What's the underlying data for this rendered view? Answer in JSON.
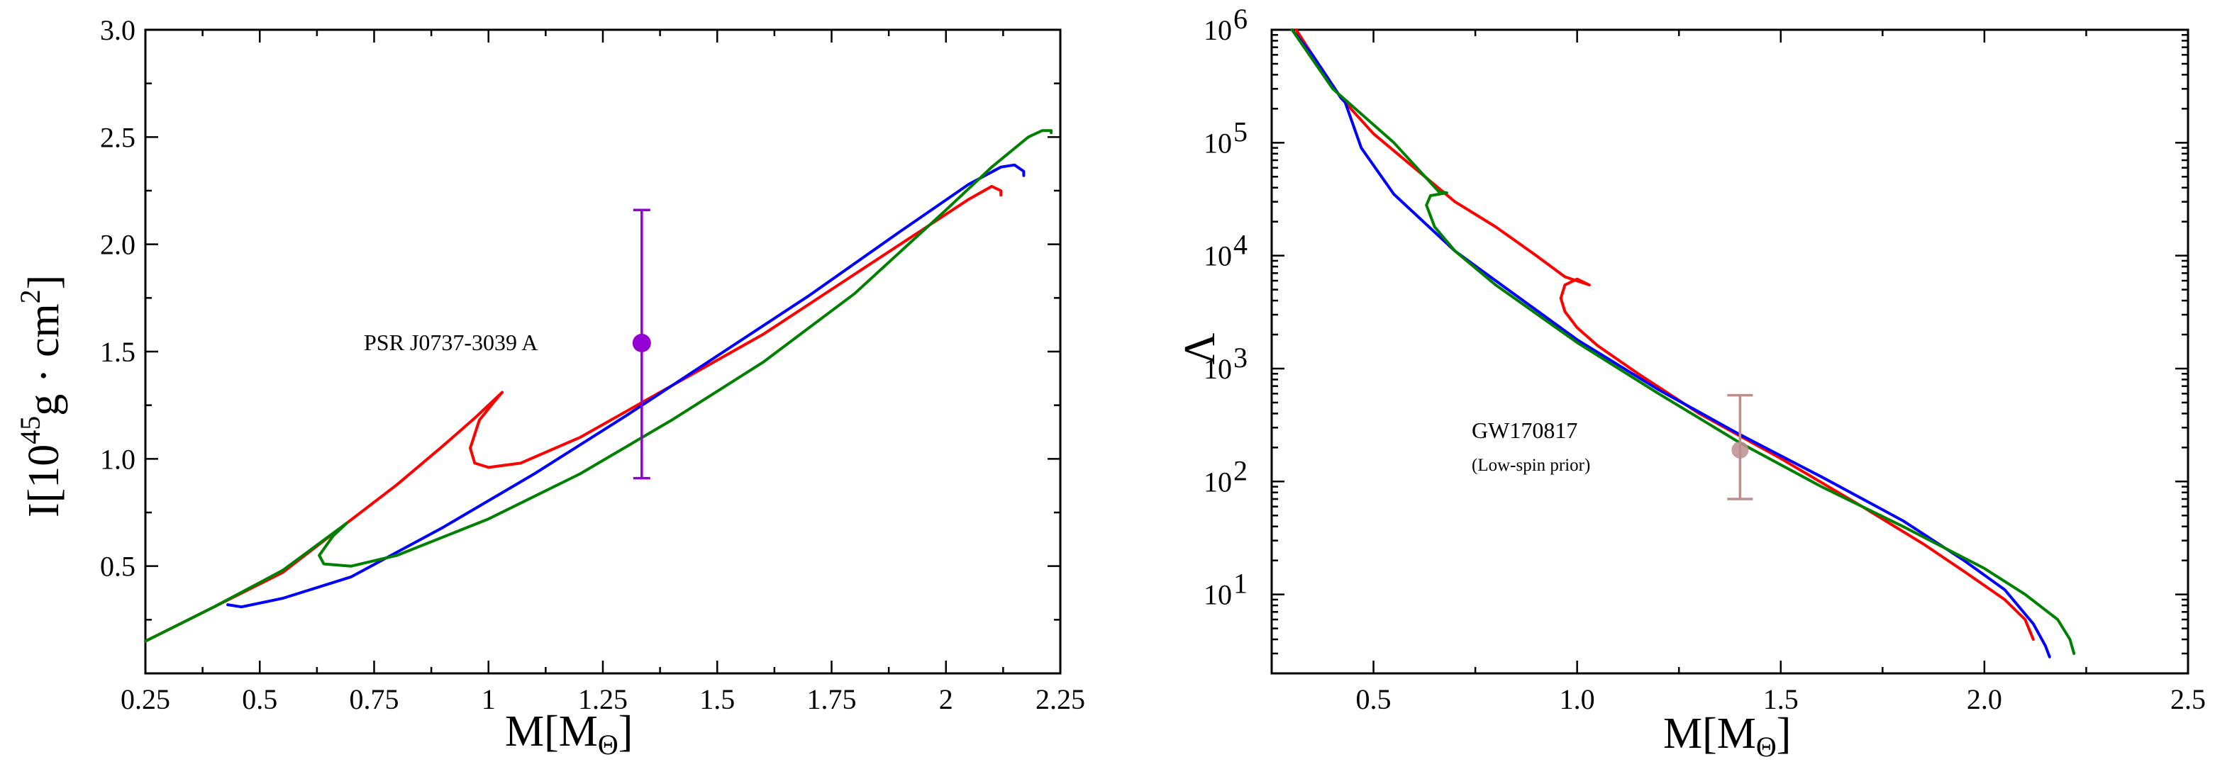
{
  "chart_data": [
    {
      "type": "line",
      "xlim": [
        0.25,
        2.25
      ],
      "ylim": [
        0,
        3.0
      ],
      "x_ticks": [
        "0.25",
        "0.5",
        "0.75",
        "1",
        "1.25",
        "1.5",
        "1.75",
        "2",
        "2.25"
      ],
      "y_ticks": [
        "0.5",
        "1.0",
        "1.5",
        "2.0",
        "2.5",
        "3.0"
      ],
      "xlabel": {
        "main": "M[M",
        "sub": "Θ",
        "end": "]"
      },
      "ylabel": {
        "main": "I[10",
        "sup1": "45",
        "mid": "g · cm",
        "sup2": "2",
        "end": "]"
      },
      "annotation": "PSR J0737-3039 A",
      "colors": {
        "red": "#ff0000",
        "blue": "#0000ff",
        "green": "#008000",
        "marker": "#9400d3"
      },
      "series": [
        {
          "color": "red",
          "points": [
            [
              0.25,
              0.15
            ],
            [
              0.4,
              0.31
            ],
            [
              0.55,
              0.47
            ],
            [
              0.69,
              0.7
            ],
            [
              0.8,
              0.88
            ],
            [
              0.9,
              1.06
            ],
            [
              0.97,
              1.19
            ],
            [
              1.03,
              1.31
            ],
            [
              1.01,
              1.26
            ],
            [
              0.98,
              1.18
            ],
            [
              0.96,
              1.05
            ],
            [
              0.97,
              0.98
            ],
            [
              1.0,
              0.96
            ],
            [
              1.07,
              0.98
            ],
            [
              1.2,
              1.1
            ],
            [
              1.4,
              1.34
            ],
            [
              1.6,
              1.58
            ],
            [
              1.8,
              1.86
            ],
            [
              1.95,
              2.07
            ],
            [
              2.05,
              2.21
            ],
            [
              2.1,
              2.27
            ],
            [
              2.12,
              2.25
            ],
            [
              2.12,
              2.23
            ]
          ]
        },
        {
          "color": "blue",
          "points": [
            [
              0.43,
              0.32
            ],
            [
              0.46,
              0.31
            ],
            [
              0.55,
              0.35
            ],
            [
              0.7,
              0.45
            ],
            [
              0.9,
              0.68
            ],
            [
              1.1,
              0.93
            ],
            [
              1.3,
              1.2
            ],
            [
              1.5,
              1.48
            ],
            [
              1.7,
              1.76
            ],
            [
              1.9,
              2.06
            ],
            [
              2.05,
              2.28
            ],
            [
              2.12,
              2.36
            ],
            [
              2.15,
              2.37
            ],
            [
              2.17,
              2.34
            ],
            [
              2.17,
              2.32
            ]
          ]
        },
        {
          "color": "green",
          "points": [
            [
              0.25,
              0.15
            ],
            [
              0.4,
              0.31
            ],
            [
              0.55,
              0.48
            ],
            [
              0.69,
              0.7
            ],
            [
              0.66,
              0.64
            ],
            [
              0.63,
              0.55
            ],
            [
              0.64,
              0.51
            ],
            [
              0.7,
              0.5
            ],
            [
              0.8,
              0.55
            ],
            [
              1.0,
              0.72
            ],
            [
              1.2,
              0.93
            ],
            [
              1.4,
              1.18
            ],
            [
              1.6,
              1.45
            ],
            [
              1.8,
              1.77
            ],
            [
              2.0,
              2.16
            ],
            [
              2.1,
              2.36
            ],
            [
              2.18,
              2.5
            ],
            [
              2.21,
              2.53
            ],
            [
              2.23,
              2.53
            ],
            [
              2.23,
              2.52
            ]
          ]
        }
      ],
      "error_bar": {
        "x": 1.335,
        "y": 1.54,
        "y_low": 0.91,
        "y_high": 2.16
      }
    },
    {
      "type": "line",
      "xlim": [
        0.25,
        2.5
      ],
      "ylim": [
        2,
        1000000
      ],
      "log_y": true,
      "x_ticks": [
        "0.5",
        "1.0",
        "1.5",
        "2.0",
        "2.5"
      ],
      "y_ticks": [
        {
          "base": "10",
          "exp": "1"
        },
        {
          "base": "10",
          "exp": "2"
        },
        {
          "base": "10",
          "exp": "3"
        },
        {
          "base": "10",
          "exp": "4"
        },
        {
          "base": "10",
          "exp": "5"
        },
        {
          "base": "10",
          "exp": "6"
        }
      ],
      "xlabel": {
        "main": "M[M",
        "sub": "Θ",
        "end": "]"
      },
      "ylabel": "Λ",
      "annotation": "GW170817",
      "annotation_sub": "(Low-spin prior)",
      "colors": {
        "red": "#ff0000",
        "blue": "#0000ff",
        "green": "#008000",
        "marker": "#bc8f8f"
      },
      "series": [
        {
          "color": "red",
          "points": [
            [
              0.31,
              1000000
            ],
            [
              0.35,
              600000
            ],
            [
              0.42,
              250000
            ],
            [
              0.5,
              120000
            ],
            [
              0.6,
              60000
            ],
            [
              0.7,
              30000
            ],
            [
              0.8,
              18000
            ],
            [
              0.9,
              10000
            ],
            [
              0.97,
              6500
            ],
            [
              1.03,
              5500
            ],
            [
              1.0,
              6200
            ],
            [
              0.97,
              5500
            ],
            [
              0.96,
              4200
            ],
            [
              0.97,
              3200
            ],
            [
              1.0,
              2300
            ],
            [
              1.05,
              1600
            ],
            [
              1.15,
              900
            ],
            [
              1.3,
              400
            ],
            [
              1.5,
              160
            ],
            [
              1.7,
              60
            ],
            [
              1.85,
              28
            ],
            [
              1.95,
              16
            ],
            [
              2.05,
              9
            ],
            [
              2.1,
              6
            ],
            [
              2.12,
              4
            ]
          ]
        },
        {
          "color": "blue",
          "points": [
            [
              0.3,
              1000000
            ],
            [
              0.35,
              600000
            ],
            [
              0.42,
              250000
            ],
            [
              0.43,
              230000
            ],
            [
              0.47,
              90000
            ],
            [
              0.55,
              35000
            ],
            [
              0.7,
              11000
            ],
            [
              0.8,
              6000
            ],
            [
              1.0,
              1800
            ],
            [
              1.2,
              650
            ],
            [
              1.4,
              260
            ],
            [
              1.6,
              110
            ],
            [
              1.8,
              45
            ],
            [
              1.95,
              20
            ],
            [
              2.05,
              11
            ],
            [
              2.12,
              5.5
            ],
            [
              2.15,
              3.5
            ],
            [
              2.16,
              2.8
            ]
          ]
        },
        {
          "color": "green",
          "points": [
            [
              0.3,
              1000000
            ],
            [
              0.4,
              300000
            ],
            [
              0.55,
              100000
            ],
            [
              0.66,
              37000
            ],
            [
              0.68,
              36000
            ],
            [
              0.64,
              34000
            ],
            [
              0.63,
              28000
            ],
            [
              0.65,
              18000
            ],
            [
              0.7,
              11000
            ],
            [
              0.8,
              5500
            ],
            [
              1.0,
              1700
            ],
            [
              1.2,
              600
            ],
            [
              1.4,
              220
            ],
            [
              1.6,
              90
            ],
            [
              1.8,
              40
            ],
            [
              2.0,
              17
            ],
            [
              2.1,
              10
            ],
            [
              2.18,
              6
            ],
            [
              2.21,
              4
            ],
            [
              2.22,
              3
            ]
          ]
        }
      ],
      "error_bar": {
        "x": 1.4,
        "y": 190,
        "y_low": 70,
        "y_high": 580
      }
    }
  ]
}
